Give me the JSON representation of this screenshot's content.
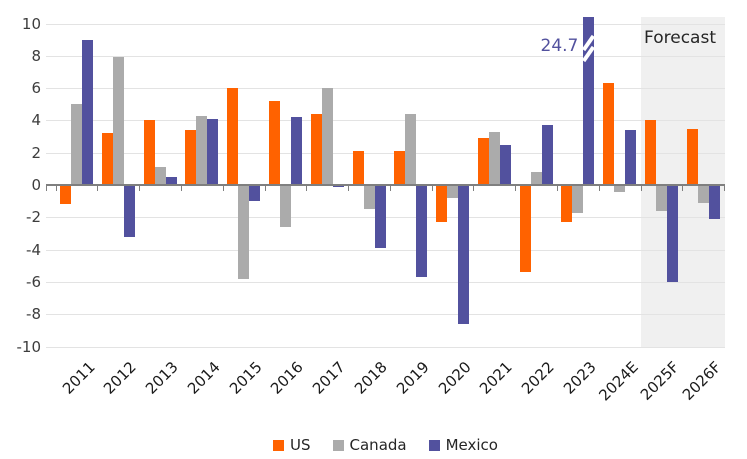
{
  "chart_data": {
    "type": "bar",
    "title": "",
    "categories": [
      "2011",
      "2012",
      "2013",
      "2014",
      "2015",
      "2016",
      "2017",
      "2018",
      "2019",
      "2020",
      "2021",
      "2022",
      "2023",
      "2024E",
      "2025F",
      "2026F"
    ],
    "series": [
      {
        "name": "US",
        "color": "#FF6200",
        "values": [
          -1.2,
          3.2,
          4.0,
          3.4,
          6.0,
          5.2,
          4.4,
          2.1,
          2.1,
          -2.3,
          2.9,
          -5.4,
          -2.3,
          6.3,
          4.0,
          3.5
        ]
      },
      {
        "name": "Canada",
        "color": "#ABABAB",
        "values": [
          5.0,
          7.9,
          1.1,
          4.3,
          -5.8,
          -2.6,
          6.0,
          -1.5,
          4.4,
          -0.8,
          3.3,
          0.8,
          -1.7,
          -0.4,
          -1.6,
          -1.1
        ]
      },
      {
        "name": "Mexico",
        "color": "#52519E",
        "values": [
          9.0,
          -3.2,
          0.5,
          4.1,
          -1.0,
          4.2,
          -0.1,
          -3.9,
          -5.7,
          -8.6,
          2.5,
          3.7,
          24.7,
          3.4,
          -6.0,
          -2.1
        ]
      }
    ],
    "ylim": [
      -10,
      10
    ],
    "yticks": [
      10,
      8,
      6,
      4,
      2,
      0,
      -2,
      -4,
      -6,
      -8,
      -10
    ],
    "grid": true,
    "legend_position": "bottom",
    "annotation": {
      "text": "24.7",
      "series": "Mexico",
      "category": "2023",
      "clipped": true,
      "color": "#52519E"
    },
    "forecast": {
      "label": "Forecast",
      "start_category": "2025F",
      "band_color": "#F0F0F0"
    },
    "colors": {
      "gridline": "#E3E3E3",
      "axis": "#7F7F7F",
      "background": "#FFFFFF"
    }
  }
}
